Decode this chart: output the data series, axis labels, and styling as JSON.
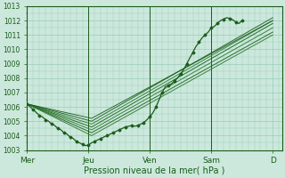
{
  "background_color": "#cce8dc",
  "plot_bg_color": "#cce8dc",
  "grid_color": "#99ccbb",
  "line_color_dark": "#1a5c1a",
  "line_color_med": "#2a7a2a",
  "ylabel": "Pression niveau de la mer( hPa )",
  "ylim": [
    1003,
    1013
  ],
  "yticks": [
    1003,
    1004,
    1005,
    1006,
    1007,
    1008,
    1009,
    1010,
    1011,
    1012,
    1013
  ],
  "xtick_labels": [
    "Mer",
    "Jeu",
    "Ven",
    "Sam",
    "D"
  ],
  "xtick_positions": [
    0.0,
    1.0,
    2.0,
    3.0,
    4.0
  ],
  "xlim": [
    0,
    4.15
  ],
  "straight_lines": [
    {
      "x": [
        0,
        4.0
      ],
      "y": [
        1006.2,
        1012.1
      ]
    },
    {
      "x": [
        0,
        4.0
      ],
      "y": [
        1006.2,
        1011.9
      ]
    },
    {
      "x": [
        0,
        4.0
      ],
      "y": [
        1006.2,
        1011.7
      ]
    },
    {
      "x": [
        0,
        4.0
      ],
      "y": [
        1006.2,
        1011.5
      ]
    },
    {
      "x": [
        0,
        4.0
      ],
      "y": [
        1006.2,
        1011.2
      ]
    },
    {
      "x": [
        0,
        4.0
      ],
      "y": [
        1006.2,
        1011.0
      ]
    },
    {
      "x": [
        0,
        4.0
      ],
      "y": [
        1006.2,
        1010.8
      ]
    }
  ],
  "bent_lines": [
    {
      "x": [
        0,
        1.05,
        4.0
      ],
      "y": [
        1006.2,
        1005.0,
        1012.2
      ]
    },
    {
      "x": [
        0,
        1.05,
        4.0
      ],
      "y": [
        1006.2,
        1004.8,
        1012.0
      ]
    },
    {
      "x": [
        0,
        1.05,
        4.0
      ],
      "y": [
        1006.2,
        1004.6,
        1011.8
      ]
    },
    {
      "x": [
        0,
        1.05,
        4.0
      ],
      "y": [
        1006.2,
        1004.4,
        1011.5
      ]
    },
    {
      "x": [
        0,
        1.05,
        4.0
      ],
      "y": [
        1006.2,
        1004.2,
        1011.2
      ]
    },
    {
      "x": [
        0,
        1.05,
        4.0
      ],
      "y": [
        1006.2,
        1004.0,
        1011.0
      ]
    },
    {
      "x": [
        0,
        1.05,
        4.0
      ],
      "y": [
        1006.2,
        1005.2,
        1012.0
      ]
    }
  ],
  "detail_x": [
    0.0,
    0.05,
    0.1,
    0.15,
    0.2,
    0.25,
    0.3,
    0.35,
    0.4,
    0.45,
    0.5,
    0.55,
    0.6,
    0.65,
    0.7,
    0.75,
    0.8,
    0.85,
    0.9,
    0.95,
    1.0,
    1.05,
    1.1,
    1.15,
    1.2,
    1.25,
    1.3,
    1.35,
    1.4,
    1.45,
    1.5,
    1.55,
    1.6,
    1.65,
    1.7,
    1.75,
    1.8,
    1.85,
    1.9,
    1.95,
    2.0,
    2.05,
    2.1,
    2.15,
    2.2,
    2.25,
    2.3,
    2.35,
    2.4,
    2.45,
    2.5,
    2.55,
    2.6,
    2.65,
    2.7,
    2.75,
    2.8,
    2.85,
    2.9,
    2.95,
    3.0,
    3.05,
    3.1,
    3.15,
    3.2,
    3.25,
    3.3,
    3.35,
    3.4,
    3.45,
    3.5
  ],
  "detail_y": [
    1006.2,
    1006.0,
    1005.8,
    1005.6,
    1005.4,
    1005.3,
    1005.1,
    1005.0,
    1004.8,
    1004.7,
    1004.5,
    1004.4,
    1004.2,
    1004.1,
    1003.9,
    1003.8,
    1003.6,
    1003.5,
    1003.4,
    1003.3,
    1003.35,
    1003.5,
    1003.6,
    1003.7,
    1003.8,
    1003.9,
    1004.0,
    1004.1,
    1004.2,
    1004.3,
    1004.4,
    1004.5,
    1004.6,
    1004.65,
    1004.7,
    1004.65,
    1004.7,
    1004.8,
    1004.9,
    1005.1,
    1005.3,
    1005.6,
    1006.0,
    1006.5,
    1007.0,
    1007.4,
    1007.5,
    1007.6,
    1007.8,
    1008.0,
    1008.3,
    1008.6,
    1009.0,
    1009.4,
    1009.8,
    1010.2,
    1010.5,
    1010.8,
    1011.0,
    1011.2,
    1011.5,
    1011.6,
    1011.8,
    1012.0,
    1012.1,
    1012.2,
    1012.15,
    1012.05,
    1011.9,
    1011.8,
    1012.0
  ],
  "vlines": [
    1.0,
    2.0,
    3.0
  ]
}
